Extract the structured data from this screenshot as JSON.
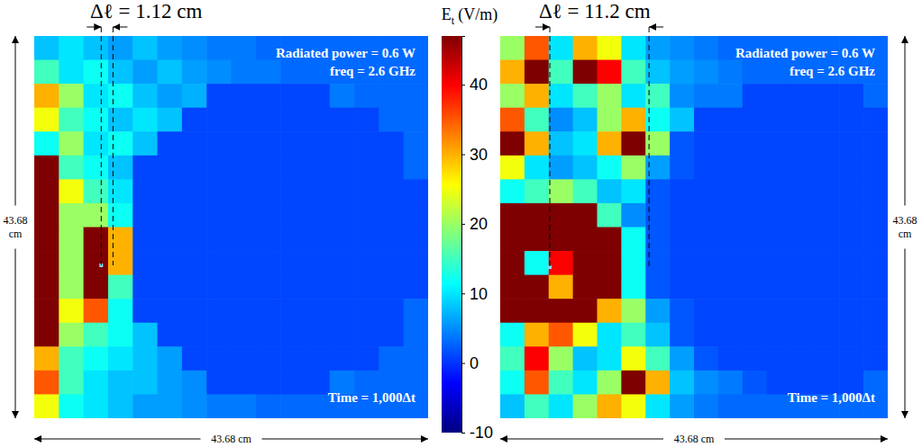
{
  "chart_data": [
    {
      "type": "heatmap",
      "title": "Δℓ = 1.12 cm",
      "tick_labels": false,
      "annotations": [
        "Radiated power = 0.6 W",
        "freq = 2.6 GHz",
        "Time = 1,000Δt"
      ],
      "x_label": "43.68 cm",
      "y_label": "43.68 cm",
      "cells": [
        [
          8,
          10,
          8,
          6,
          8,
          6,
          5,
          4,
          4,
          3,
          3,
          3,
          3,
          3,
          3,
          3
        ],
        [
          15,
          10,
          12,
          8,
          6,
          8,
          6,
          5,
          4,
          4,
          3,
          3,
          3,
          3,
          3,
          3
        ],
        [
          30,
          20,
          10,
          12,
          8,
          6,
          7,
          1,
          1,
          1,
          1,
          1,
          4,
          3,
          3,
          3
        ],
        [
          25,
          15,
          12,
          8,
          10,
          8,
          1,
          1,
          1,
          1,
          1,
          1,
          1,
          1,
          3,
          3
        ],
        [
          12,
          20,
          10,
          12,
          8,
          1,
          1,
          1,
          1,
          1,
          1,
          1,
          1,
          1,
          1,
          3
        ],
        [
          50,
          15,
          12,
          8,
          1,
          1,
          1,
          1,
          1,
          1,
          1,
          1,
          1,
          1,
          1,
          3
        ],
        [
          50,
          25,
          15,
          10,
          1,
          1,
          1,
          1,
          1,
          1,
          1,
          1,
          1,
          1,
          1,
          1
        ],
        [
          50,
          20,
          20,
          12,
          1,
          1,
          1,
          1,
          1,
          1,
          1,
          1,
          1,
          1,
          1,
          1
        ],
        [
          50,
          20,
          50,
          30,
          1,
          1,
          1,
          1,
          1,
          1,
          1,
          1,
          1,
          1,
          1,
          1
        ],
        [
          50,
          20,
          50,
          30,
          1,
          1,
          1,
          1,
          1,
          1,
          1,
          1,
          1,
          1,
          1,
          1
        ],
        [
          50,
          20,
          50,
          15,
          1,
          1,
          1,
          1,
          1,
          1,
          1,
          1,
          1,
          1,
          1,
          1
        ],
        [
          50,
          25,
          35,
          12,
          1,
          1,
          1,
          1,
          1,
          1,
          1,
          1,
          1,
          1,
          1,
          3
        ],
        [
          50,
          20,
          15,
          12,
          8,
          1,
          1,
          1,
          1,
          1,
          1,
          1,
          1,
          1,
          1,
          3
        ],
        [
          30,
          15,
          12,
          10,
          8,
          6,
          1,
          1,
          1,
          1,
          1,
          1,
          1,
          1,
          3,
          3
        ],
        [
          35,
          15,
          10,
          8,
          8,
          6,
          5,
          1,
          1,
          1,
          1,
          1,
          4,
          3,
          3,
          3
        ],
        [
          25,
          12,
          10,
          8,
          6,
          6,
          5,
          4,
          4,
          3,
          3,
          3,
          3,
          3,
          3,
          3
        ]
      ]
    },
    {
      "type": "heatmap",
      "title": "Δℓ = 11.2 cm",
      "tick_labels": false,
      "annotations": [
        "Radiated power = 0.6 W",
        "freq = 2.6 GHz",
        "Time = 1,000Δt"
      ],
      "x_label": "43.68 cm",
      "y_label": "43.68 cm",
      "cells": [
        [
          20,
          35,
          10,
          30,
          25,
          10,
          6,
          5,
          4,
          3,
          3,
          3,
          3,
          3,
          3,
          3
        ],
        [
          30,
          50,
          15,
          50,
          40,
          15,
          8,
          6,
          5,
          4,
          3,
          3,
          3,
          3,
          3,
          3
        ],
        [
          20,
          30,
          10,
          15,
          20,
          10,
          15,
          5,
          4,
          4,
          1,
          1,
          1,
          1,
          1,
          3
        ],
        [
          35,
          15,
          5,
          8,
          20,
          30,
          12,
          8,
          1,
          1,
          1,
          1,
          1,
          1,
          1,
          1
        ],
        [
          50,
          30,
          8,
          10,
          30,
          50,
          20,
          2,
          1,
          1,
          1,
          1,
          1,
          1,
          1,
          1
        ],
        [
          25,
          10,
          6,
          8,
          12,
          20,
          6,
          2,
          1,
          1,
          1,
          1,
          1,
          1,
          1,
          1
        ],
        [
          12,
          15,
          20,
          15,
          8,
          10,
          2,
          1,
          1,
          1,
          1,
          1,
          1,
          1,
          1,
          1
        ],
        [
          50,
          50,
          50,
          50,
          15,
          5,
          2,
          1,
          1,
          1,
          1,
          1,
          1,
          1,
          1,
          1
        ],
        [
          50,
          50,
          50,
          50,
          50,
          12,
          2,
          1,
          1,
          1,
          1,
          1,
          1,
          1,
          1,
          1
        ],
        [
          50,
          12,
          40,
          50,
          50,
          12,
          2,
          1,
          1,
          1,
          1,
          1,
          1,
          1,
          1,
          1
        ],
        [
          50,
          50,
          30,
          50,
          50,
          12,
          2,
          1,
          1,
          1,
          1,
          1,
          1,
          1,
          1,
          1
        ],
        [
          50,
          50,
          50,
          50,
          30,
          20,
          6,
          2,
          1,
          1,
          1,
          1,
          1,
          1,
          1,
          1
        ],
        [
          12,
          30,
          35,
          25,
          10,
          15,
          8,
          2,
          1,
          1,
          1,
          1,
          1,
          1,
          1,
          1
        ],
        [
          15,
          40,
          20,
          8,
          10,
          25,
          15,
          6,
          2,
          1,
          1,
          1,
          1,
          1,
          1,
          1
        ],
        [
          12,
          35,
          15,
          10,
          20,
          50,
          30,
          8,
          5,
          4,
          2,
          1,
          1,
          1,
          1,
          3
        ],
        [
          8,
          15,
          10,
          20,
          30,
          25,
          10,
          6,
          4,
          3,
          3,
          3,
          3,
          3,
          3,
          3
        ]
      ]
    }
  ],
  "colorbar": {
    "title": "E",
    "title_subscript": "t",
    "title_suffix": "(V/m)",
    "range": [
      -10,
      47
    ],
    "ticks": [
      -10,
      0,
      10,
      20,
      30,
      40
    ]
  }
}
